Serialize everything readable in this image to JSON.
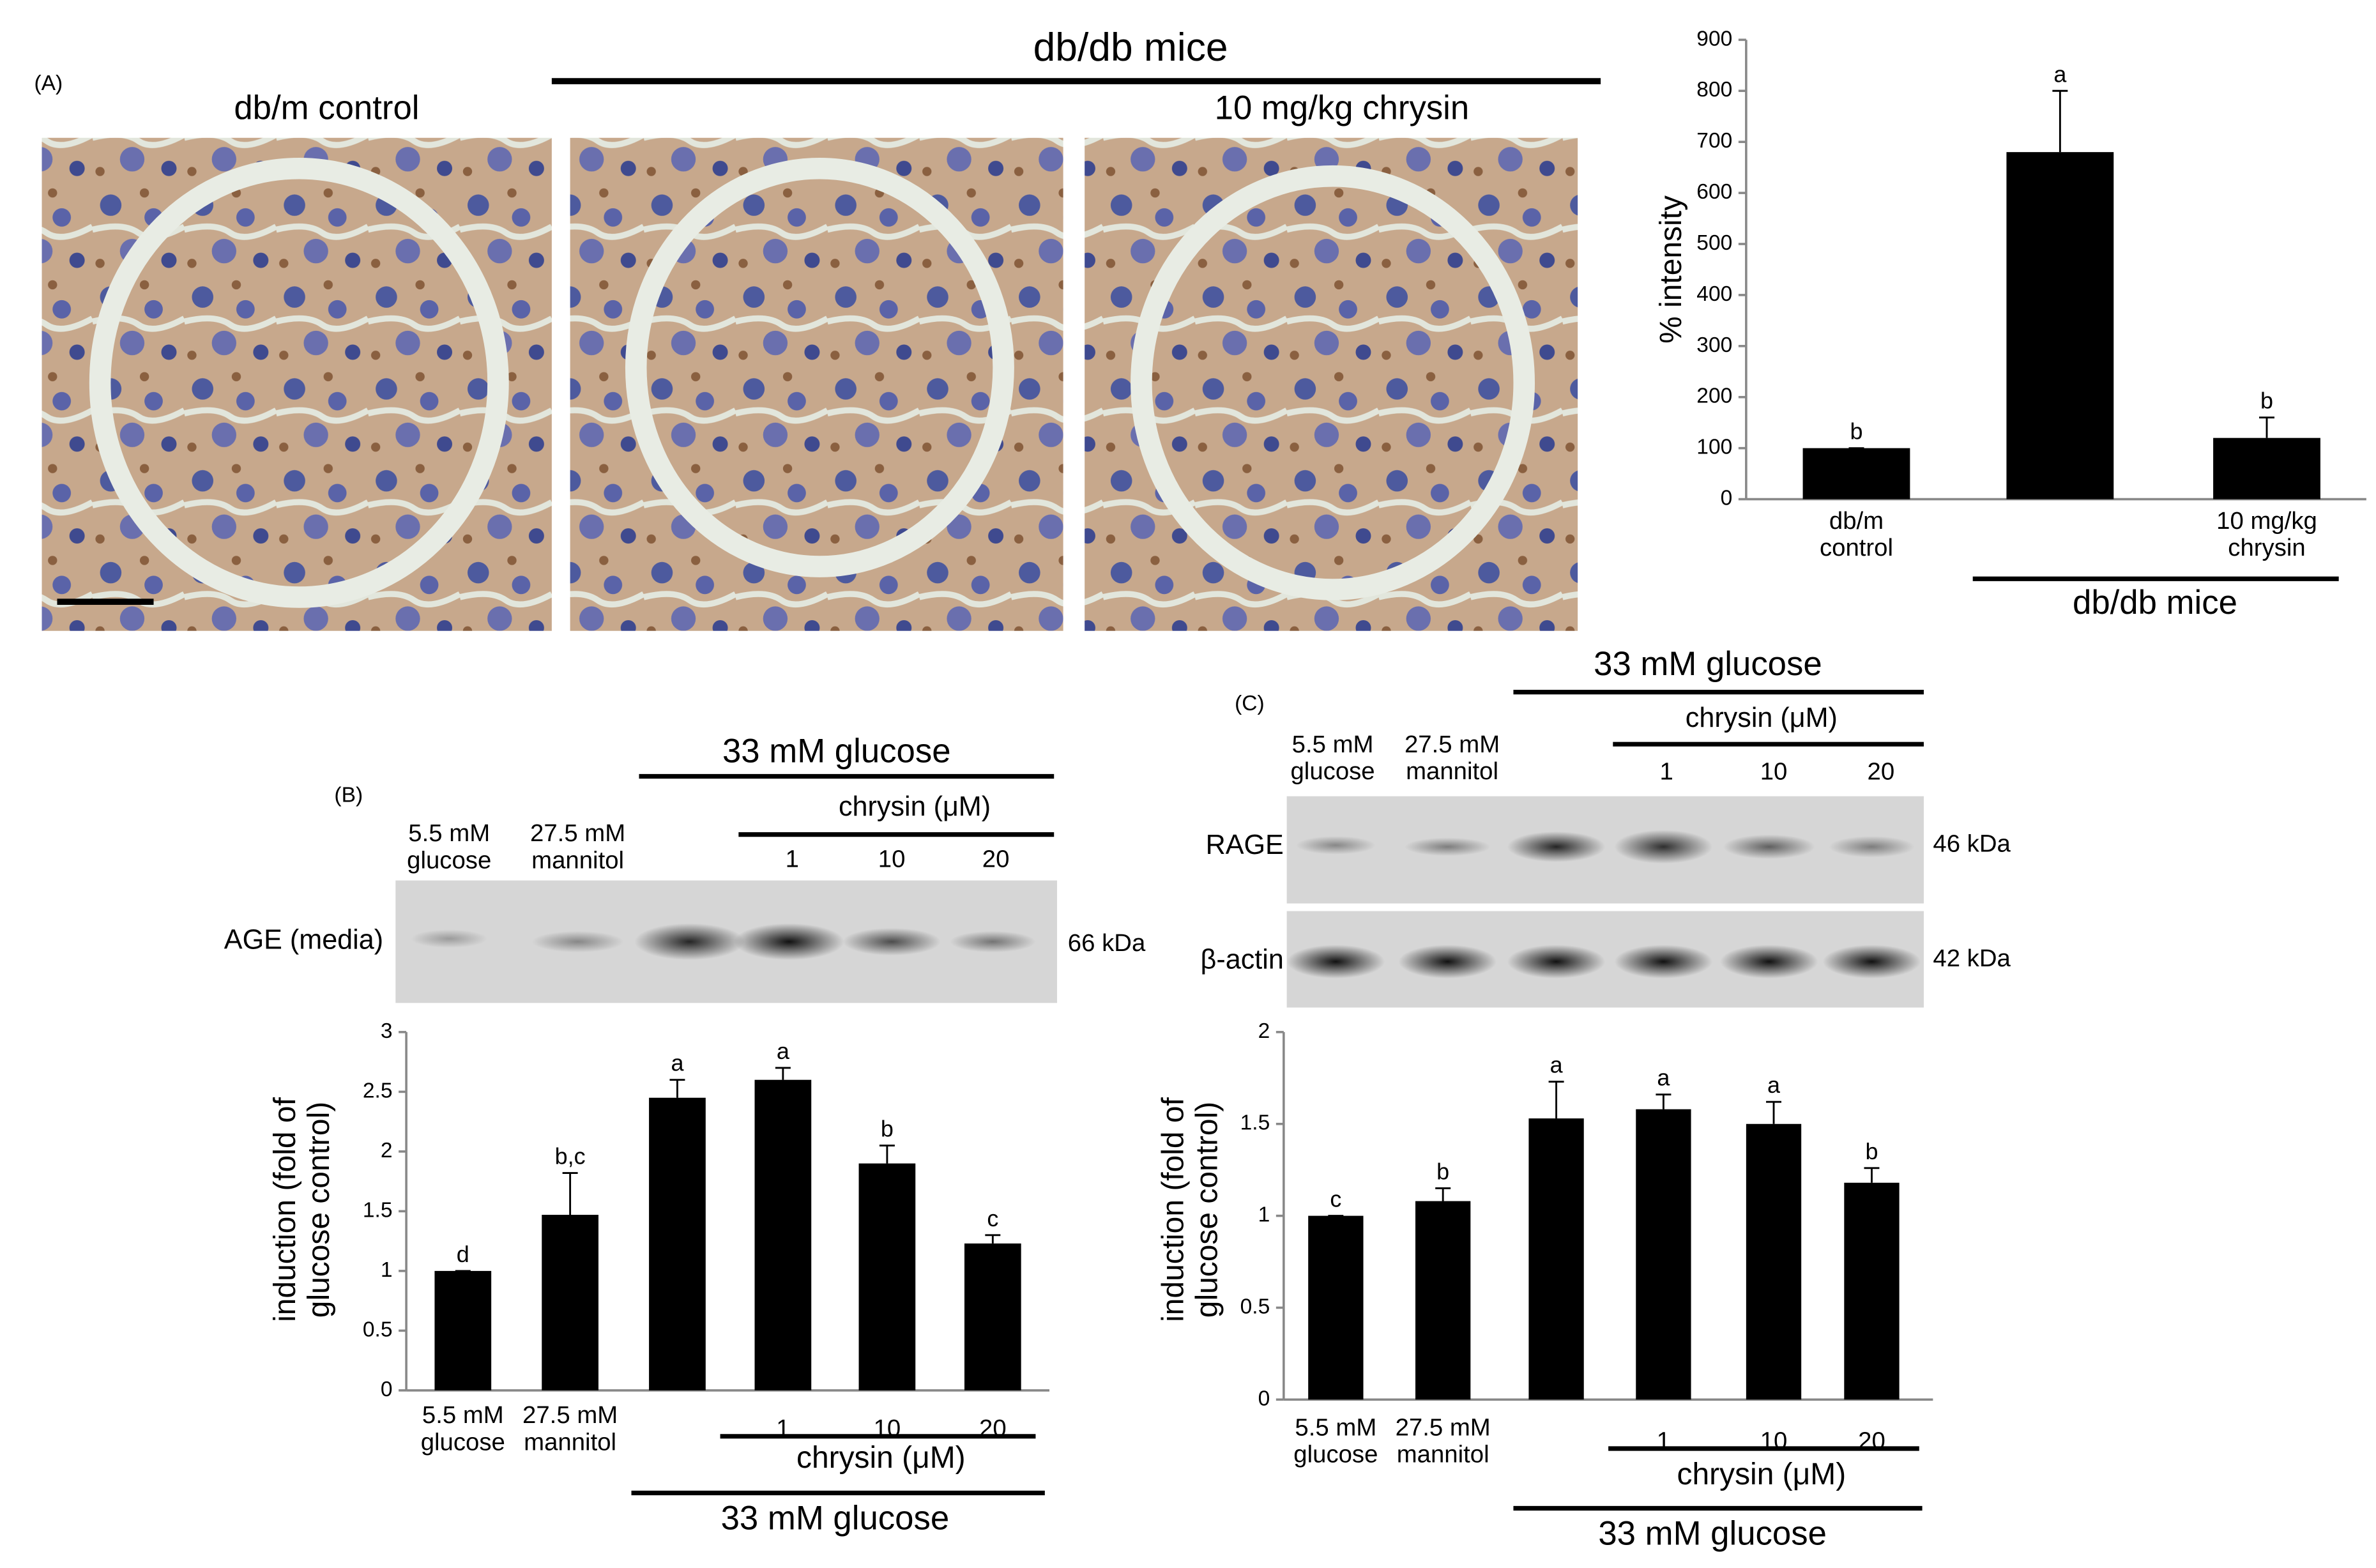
{
  "panel_a": {
    "label": "(A)",
    "group": "db/db mice",
    "images": [
      "db/m control",
      "10 mg/kg chrysin"
    ]
  },
  "blot_b": {
    "label": "(B)",
    "group": "33 mM glucose",
    "subgroup": "chrysin (μM)",
    "lanes": [
      "5.5 mM\nglucose",
      "27.5 mM\nmannitol",
      "1",
      "10",
      "20"
    ],
    "rows": [
      {
        "name": "AGE (media)",
        "size": "66 kDa"
      }
    ]
  },
  "blot_c": {
    "label": "(C)",
    "group": "33 mM glucose",
    "subgroup": "chrysin (μM)",
    "lanes": [
      "5.5 mM\nglucose",
      "27.5 mM\nmannitol",
      "1",
      "10",
      "20"
    ],
    "rows": [
      {
        "name": "RAGE",
        "size": "46 kDa"
      },
      {
        "name": "β-actin",
        "size": "42 kDa"
      }
    ]
  },
  "chart_data": [
    {
      "type": "bar",
      "ylabel": "% intensity",
      "categories": [
        "db/m\ncontrol",
        null,
        "10 mg/kg\nchrysin"
      ],
      "values": [
        100,
        680,
        120
      ],
      "errors": [
        0,
        120,
        40
      ],
      "letters": [
        "b",
        "a",
        "b"
      ],
      "groups": [
        "db/db mice"
      ],
      "color": "#000000",
      "ylim": [
        0,
        900
      ],
      "yticks": [
        0,
        100,
        200,
        300,
        400,
        500,
        600,
        700,
        800,
        900
      ]
    },
    {
      "type": "bar",
      "ylabel": "induction (fold of\nglucose control)",
      "categories": [
        "5.5 mM\nglucose",
        "27.5 mM\nmannitol",
        null,
        "1",
        "10",
        "20"
      ],
      "values": [
        1,
        1.47,
        2.45,
        2.6,
        1.9,
        1.23
      ],
      "errors": [
        0,
        0.35,
        0.15,
        0.1,
        0.15,
        0.07
      ],
      "letters": [
        "d",
        "b,c",
        "a",
        "a",
        "b",
        "c"
      ],
      "groups": [
        "chrysin (μM)",
        "33 mM glucose"
      ],
      "color": "#000000",
      "ylim": [
        0,
        3
      ],
      "yticks": [
        0,
        0.5,
        1,
        1.5,
        2,
        2.5,
        3
      ]
    },
    {
      "type": "bar",
      "ylabel": "induction (fold of\nglucose control)",
      "categories": [
        "5.5 mM\nglucose",
        "27.5 mM\nmannitol",
        null,
        "1",
        "10",
        "20"
      ],
      "values": [
        1,
        1.08,
        1.53,
        1.58,
        1.5,
        1.18
      ],
      "errors": [
        0,
        0.07,
        0.2,
        0.08,
        0.12,
        0.08
      ],
      "letters": [
        "c",
        "b",
        "a",
        "a",
        "a",
        "b"
      ],
      "groups": [
        "chrysin (μM)",
        "33 mM glucose"
      ],
      "color": "#000000",
      "ylim": [
        0,
        2
      ],
      "yticks": [
        0,
        0.5,
        1,
        1.5,
        2
      ]
    }
  ]
}
